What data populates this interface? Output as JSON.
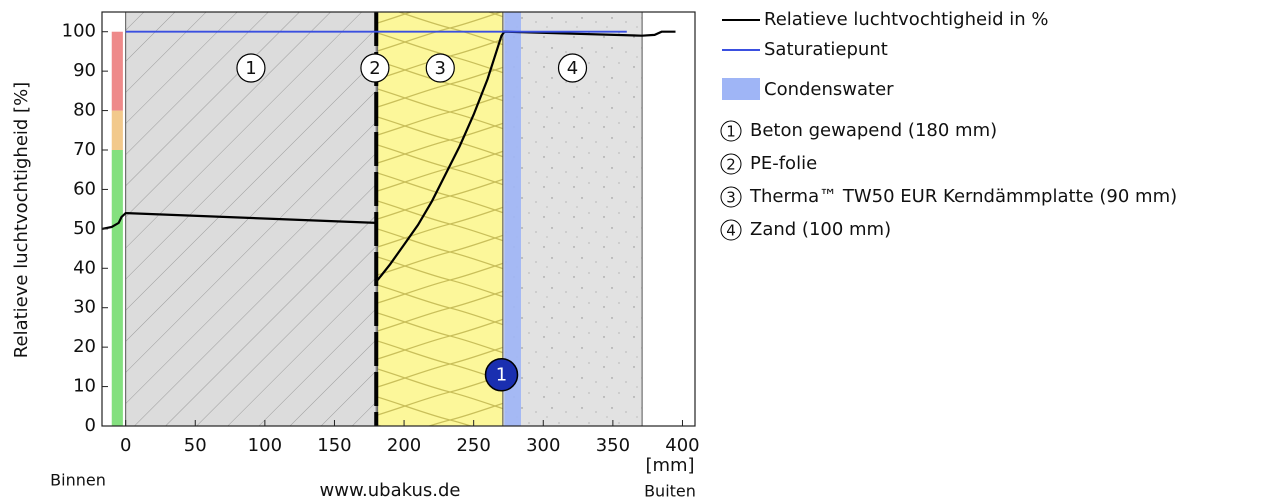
{
  "chart_data": {
    "type": "line",
    "y_label": "Relatieve luchtvochtigheid [%]",
    "x_unit": "[mm]",
    "left_label": "Binnen",
    "right_label": "Buiten",
    "footer": "www.ubakus.de",
    "xlim": [
      -17,
      409
    ],
    "ylim": [
      0,
      105
    ],
    "xticks": [
      0,
      50,
      100,
      150,
      200,
      250,
      300,
      350,
      400
    ],
    "yticks": [
      0,
      10,
      20,
      30,
      40,
      50,
      60,
      70,
      80,
      90,
      100
    ],
    "series": [
      {
        "name": "Relatieve luchtvochtigheid in %",
        "color": "#000000",
        "x": [
          -17,
          -10,
          -5,
          -3,
          0,
          180,
          180.5,
          181,
          190,
          200,
          210,
          220,
          230,
          240,
          250,
          260,
          270,
          272,
          371,
          380,
          385,
          395
        ],
        "values": [
          50,
          50.5,
          51.5,
          53,
          54,
          51.5,
          null,
          37,
          41,
          46,
          51,
          57,
          64,
          71,
          79,
          88,
          99,
          100,
          99,
          99.2,
          100,
          100
        ]
      },
      {
        "name": "Saturatiepunt",
        "color": "#3a4fe0",
        "x": [
          0,
          360
        ],
        "values": [
          100,
          100
        ]
      }
    ],
    "condensation": {
      "name": "Condenswater",
      "color": "#9fb5f6",
      "x": [
        272,
        284
      ]
    },
    "layers": [
      {
        "number": "1",
        "name": "Beton gewapend (180 mm)",
        "x": [
          0,
          180
        ]
      },
      {
        "number": "2",
        "name": "PE-folie",
        "x": [
          180,
          181
        ]
      },
      {
        "number": "3",
        "name": "Therma™ TW50 EUR Kerndämmplatte (90 mm)",
        "x": [
          181,
          271
        ]
      },
      {
        "number": "4",
        "name": "Zand (100 mm)",
        "x": [
          271,
          371
        ]
      }
    ],
    "zones": [
      {
        "from": 0,
        "to": 70,
        "color": "#84e07f"
      },
      {
        "from": 70,
        "to": 80,
        "color": "#f2c98c"
      },
      {
        "from": 80,
        "to": 100,
        "color": "#ee8a8a"
      }
    ],
    "marker": {
      "label": "1",
      "x": 270,
      "y": 13,
      "color": "#1a2fb0"
    }
  }
}
